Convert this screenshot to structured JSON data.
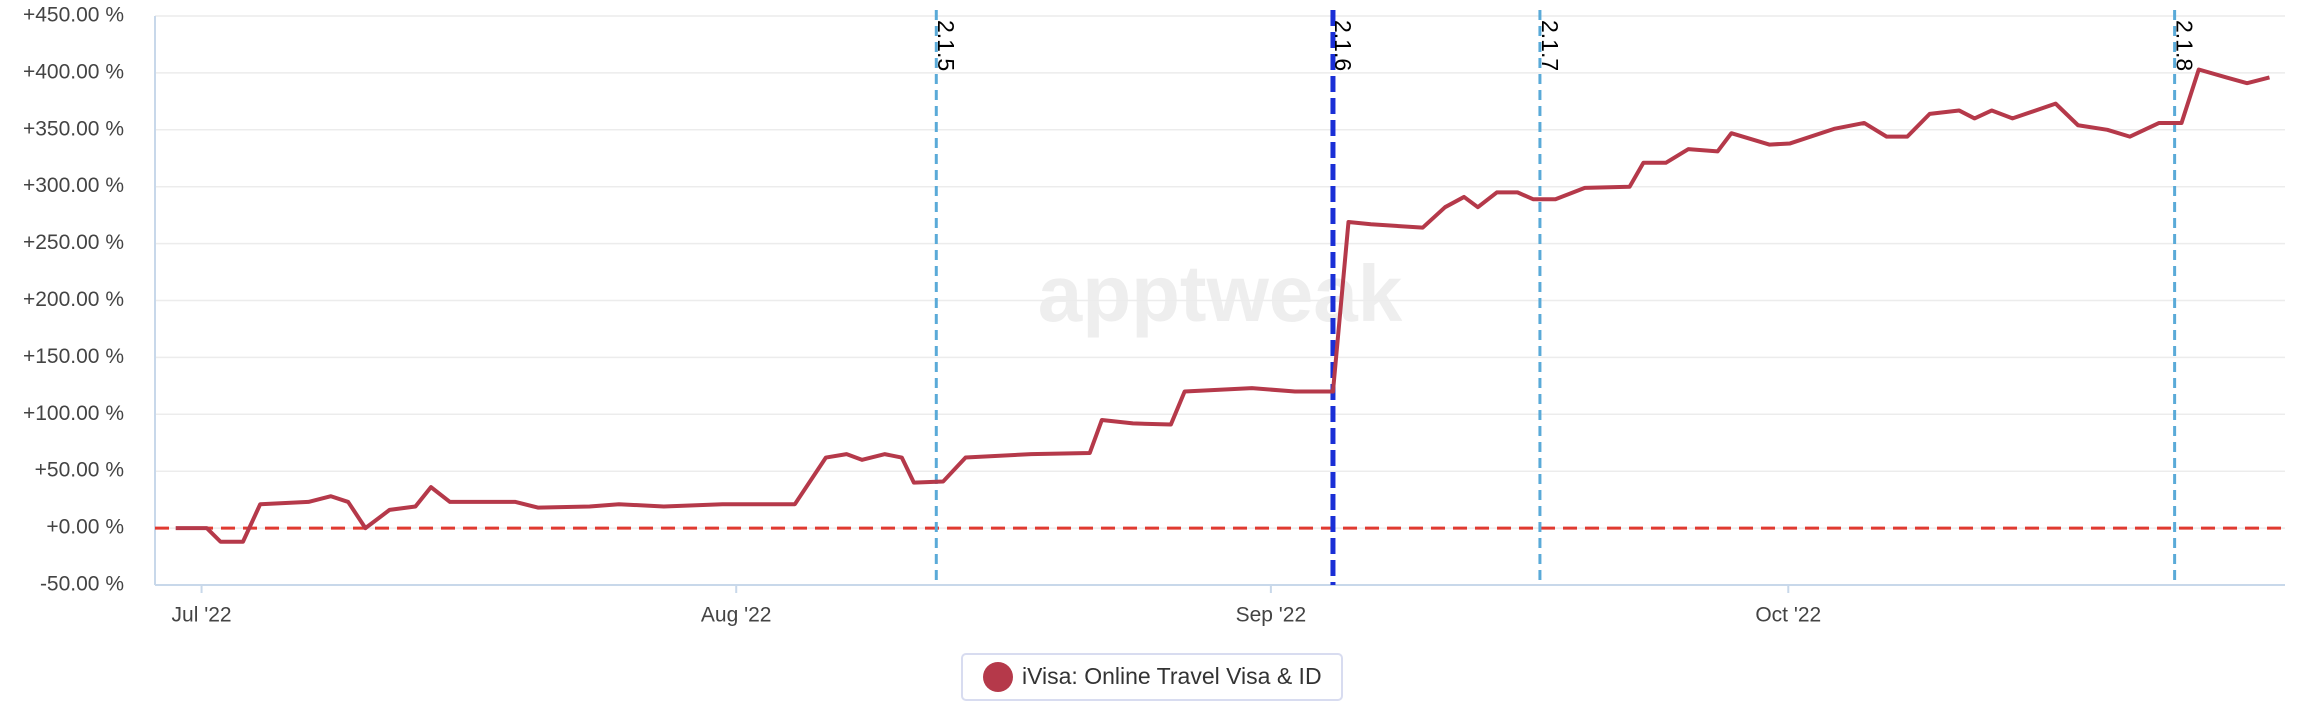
{
  "chart_data": {
    "type": "line",
    "watermark": "apptweak",
    "x": [
      -1.5,
      0.3,
      1.1,
      2.4,
      3.4,
      6.2,
      7.5,
      8.5,
      9.5,
      10.9,
      12.4,
      13.3,
      14.4,
      16.5,
      18.2,
      19.5,
      22.5,
      24.2,
      26.8,
      30.2,
      34.4,
      36.2,
      37.4,
      38.3,
      39.6,
      40.6,
      41.3,
      43,
      44.3,
      48.1,
      51.5,
      52.2,
      54,
      56.2,
      57,
      60.9,
      63.4,
      65.6,
      66.5,
      67.8,
      70.8,
      72.1,
      73.2,
      74,
      75.1,
      76.3,
      77.2,
      78.5,
      80.2,
      82.8,
      83.6,
      84.9,
      86.2,
      87.9,
      88.7,
      90.9,
      92.1,
      94.7,
      96.4,
      97.7,
      98.9,
      100.2,
      101.9,
      102.8,
      103.8,
      105,
      107.5,
      108.8,
      110.5,
      111.8,
      113.5,
      114.8,
      115.8,
      117.4,
      118.6,
      119.9
    ],
    "series": [
      {
        "name": "iVisa: Online Travel Visa & ID",
        "color": "#b5394a",
        "values": [
          0,
          0,
          -12,
          -12,
          21,
          23,
          28,
          23,
          0,
          16,
          19,
          36,
          23,
          23,
          23,
          18,
          19,
          21,
          19,
          21,
          21,
          62,
          65,
          60,
          65,
          62,
          40,
          41,
          62,
          65,
          66,
          95,
          92,
          91,
          120,
          123,
          120,
          120,
          269,
          267,
          264,
          282,
          291,
          282,
          295,
          295,
          289,
          289,
          299,
          300,
          321,
          321,
          333,
          331,
          347,
          337,
          338,
          351,
          356,
          344,
          344,
          364,
          367,
          360,
          367,
          360,
          373,
          354,
          350,
          344,
          356,
          356,
          403,
          396,
          391,
          396
        ]
      }
    ],
    "xlim": [
      -2.7,
      120.8
    ],
    "xticks": [
      {
        "value": 0,
        "label": "Jul '22"
      },
      {
        "value": 31,
        "label": "Aug '22"
      },
      {
        "value": 62,
        "label": "Sep '22"
      },
      {
        "value": 92,
        "label": "Oct '22"
      }
    ],
    "ylim": [
      -50,
      450
    ],
    "yticks": [
      {
        "value": -50,
        "label": "-50.00 %"
      },
      {
        "value": 0,
        "label": "+0.00 %"
      },
      {
        "value": 50,
        "label": "+50.00 %"
      },
      {
        "value": 100,
        "label": "+100.00 %"
      },
      {
        "value": 150,
        "label": "+150.00 %"
      },
      {
        "value": 200,
        "label": "+200.00 %"
      },
      {
        "value": 250,
        "label": "+250.00 %"
      },
      {
        "value": 300,
        "label": "+300.00 %"
      },
      {
        "value": 350,
        "label": "+350.00 %"
      },
      {
        "value": 400,
        "label": "+400.00 %"
      },
      {
        "value": 450,
        "label": "+450.00 %"
      }
    ],
    "grid": true,
    "baseline": {
      "value": 0,
      "color": "#e03a30"
    },
    "annotations": [
      {
        "x": 42.6,
        "label": "2.1.5",
        "color": "#5aaad8"
      },
      {
        "x": 65.6,
        "label": "2.1.6",
        "color": "#1a2fd6"
      },
      {
        "x": 77.6,
        "label": "2.1.7",
        "color": "#5aaad8"
      },
      {
        "x": 114.4,
        "label": "2.1.8",
        "color": "#5aaad8"
      }
    ],
    "legend": "bottom"
  }
}
